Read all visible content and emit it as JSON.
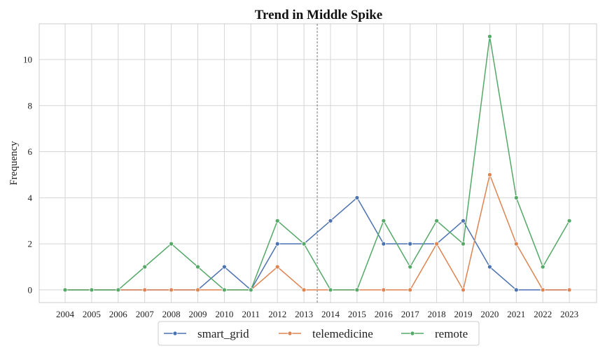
{
  "chart_data": {
    "type": "line",
    "title": "Trend in Middle Spike",
    "xlabel": "",
    "ylabel": "Frequency",
    "x": [
      2004,
      2005,
      2006,
      2007,
      2008,
      2009,
      2010,
      2011,
      2012,
      2013,
      2014,
      2015,
      2016,
      2017,
      2018,
      2019,
      2020,
      2021,
      2022,
      2023
    ],
    "ylim": [
      -0.55,
      11.55
    ],
    "yticks": [
      0,
      2,
      4,
      6,
      8,
      10
    ],
    "grid": true,
    "legend_position": "bottom-center",
    "vline_x": 2013.5,
    "series": [
      {
        "name": "smart_grid",
        "color": "#4c72b0",
        "values": [
          0,
          0,
          0,
          0,
          0,
          0,
          1,
          0,
          2,
          2,
          3,
          4,
          2,
          2,
          2,
          3,
          1,
          0,
          0,
          0
        ]
      },
      {
        "name": "telemedicine",
        "color": "#dd8452",
        "values": [
          0,
          0,
          0,
          0,
          0,
          0,
          0,
          0,
          1,
          0,
          0,
          0,
          0,
          0,
          2,
          0,
          5,
          2,
          0,
          0
        ]
      },
      {
        "name": "remote",
        "color": "#55a868",
        "values": [
          0,
          0,
          0,
          1,
          2,
          1,
          0,
          0,
          3,
          2,
          0,
          0,
          3,
          1,
          3,
          2,
          11,
          4,
          1,
          3
        ]
      }
    ]
  }
}
